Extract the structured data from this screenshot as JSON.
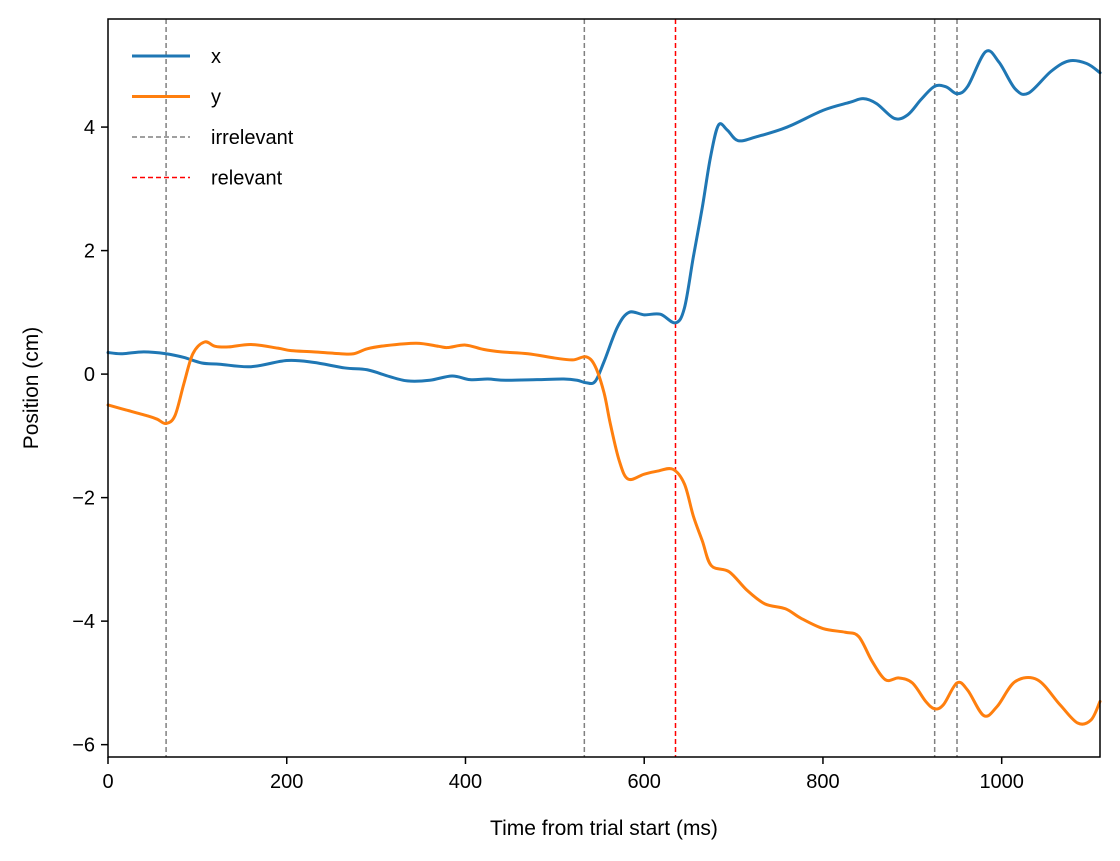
{
  "chart_data": {
    "type": "line",
    "title": "",
    "xlabel": "Time from trial start (ms)",
    "ylabel": "Position (cm)",
    "xlim": [
      0,
      1110
    ],
    "ylim": [
      -6.2,
      5.75
    ],
    "x_ticks": [
      0,
      200,
      400,
      600,
      800,
      1000
    ],
    "y_ticks": [
      -6,
      -4,
      -2,
      0,
      2,
      4
    ],
    "x_tick_labels": [
      "0",
      "200",
      "400",
      "600",
      "800",
      "1000"
    ],
    "y_tick_labels": [
      "−6",
      "−4",
      "−2",
      "0",
      "2",
      "4"
    ],
    "grid": false,
    "legend_position": "top-left",
    "series": [
      {
        "name": "x",
        "color": "#1f77b4",
        "points": [
          [
            0,
            0.35
          ],
          [
            15,
            0.33
          ],
          [
            40,
            0.36
          ],
          [
            65,
            0.33
          ],
          [
            85,
            0.27
          ],
          [
            105,
            0.18
          ],
          [
            125,
            0.16
          ],
          [
            160,
            0.12
          ],
          [
            200,
            0.22
          ],
          [
            230,
            0.19
          ],
          [
            265,
            0.1
          ],
          [
            290,
            0.07
          ],
          [
            315,
            -0.04
          ],
          [
            335,
            -0.11
          ],
          [
            360,
            -0.1
          ],
          [
            385,
            -0.03
          ],
          [
            405,
            -0.09
          ],
          [
            425,
            -0.08
          ],
          [
            445,
            -0.1
          ],
          [
            480,
            -0.09
          ],
          [
            510,
            -0.08
          ],
          [
            525,
            -0.1
          ],
          [
            535,
            -0.14
          ],
          [
            545,
            -0.12
          ],
          [
            555,
            0.2
          ],
          [
            570,
            0.76
          ],
          [
            583,
            1.0
          ],
          [
            600,
            0.96
          ],
          [
            618,
            0.97
          ],
          [
            635,
            0.83
          ],
          [
            645,
            1.07
          ],
          [
            655,
            1.9
          ],
          [
            665,
            2.7
          ],
          [
            674,
            3.5
          ],
          [
            683,
            4.03
          ],
          [
            693,
            3.95
          ],
          [
            705,
            3.78
          ],
          [
            725,
            3.84
          ],
          [
            760,
            4.0
          ],
          [
            800,
            4.27
          ],
          [
            830,
            4.4
          ],
          [
            845,
            4.46
          ],
          [
            860,
            4.38
          ],
          [
            880,
            4.14
          ],
          [
            895,
            4.2
          ],
          [
            910,
            4.45
          ],
          [
            925,
            4.66
          ],
          [
            938,
            4.65
          ],
          [
            950,
            4.54
          ],
          [
            962,
            4.66
          ],
          [
            982,
            5.22
          ],
          [
            997,
            5.05
          ],
          [
            1015,
            4.62
          ],
          [
            1030,
            4.55
          ],
          [
            1055,
            4.9
          ],
          [
            1075,
            5.07
          ],
          [
            1095,
            5.03
          ],
          [
            1110,
            4.88
          ]
        ]
      },
      {
        "name": "y",
        "color": "#ff7f0e",
        "points": [
          [
            0,
            -0.5
          ],
          [
            20,
            -0.58
          ],
          [
            45,
            -0.68
          ],
          [
            55,
            -0.73
          ],
          [
            65,
            -0.8
          ],
          [
            75,
            -0.67
          ],
          [
            85,
            -0.15
          ],
          [
            95,
            0.33
          ],
          [
            108,
            0.52
          ],
          [
            120,
            0.45
          ],
          [
            135,
            0.44
          ],
          [
            160,
            0.48
          ],
          [
            190,
            0.42
          ],
          [
            205,
            0.38
          ],
          [
            230,
            0.36
          ],
          [
            260,
            0.33
          ],
          [
            275,
            0.33
          ],
          [
            290,
            0.41
          ],
          [
            310,
            0.46
          ],
          [
            345,
            0.5
          ],
          [
            370,
            0.45
          ],
          [
            380,
            0.43
          ],
          [
            400,
            0.47
          ],
          [
            420,
            0.4
          ],
          [
            440,
            0.36
          ],
          [
            470,
            0.33
          ],
          [
            500,
            0.26
          ],
          [
            520,
            0.23
          ],
          [
            535,
            0.28
          ],
          [
            545,
            0.13
          ],
          [
            555,
            -0.3
          ],
          [
            562,
            -0.8
          ],
          [
            572,
            -1.4
          ],
          [
            582,
            -1.7
          ],
          [
            600,
            -1.62
          ],
          [
            615,
            -1.57
          ],
          [
            632,
            -1.54
          ],
          [
            645,
            -1.78
          ],
          [
            655,
            -2.3
          ],
          [
            665,
            -2.7
          ],
          [
            675,
            -3.1
          ],
          [
            695,
            -3.2
          ],
          [
            715,
            -3.5
          ],
          [
            735,
            -3.72
          ],
          [
            758,
            -3.8
          ],
          [
            775,
            -3.95
          ],
          [
            800,
            -4.12
          ],
          [
            825,
            -4.18
          ],
          [
            840,
            -4.25
          ],
          [
            855,
            -4.65
          ],
          [
            870,
            -4.95
          ],
          [
            885,
            -4.92
          ],
          [
            900,
            -5.0
          ],
          [
            915,
            -5.3
          ],
          [
            925,
            -5.42
          ],
          [
            935,
            -5.35
          ],
          [
            950,
            -5.0
          ],
          [
            962,
            -5.12
          ],
          [
            980,
            -5.53
          ],
          [
            995,
            -5.38
          ],
          [
            1015,
            -4.98
          ],
          [
            1040,
            -4.95
          ],
          [
            1065,
            -5.35
          ],
          [
            1085,
            -5.65
          ],
          [
            1100,
            -5.6
          ],
          [
            1110,
            -5.3
          ]
        ]
      }
    ],
    "vertical_lines": [
      {
        "x": 65,
        "category": "irrelevant",
        "color": "#808080"
      },
      {
        "x": 533,
        "category": "irrelevant",
        "color": "#808080"
      },
      {
        "x": 635,
        "category": "relevant",
        "color": "#ff0000"
      },
      {
        "x": 925,
        "category": "irrelevant",
        "color": "#808080"
      },
      {
        "x": 950,
        "category": "irrelevant",
        "color": "#808080"
      }
    ],
    "legend": [
      {
        "label": "x",
        "style": "solid",
        "color": "#1f77b4"
      },
      {
        "label": "y",
        "style": "solid",
        "color": "#ff7f0e"
      },
      {
        "label": "irrelevant",
        "style": "dashed",
        "color": "#808080"
      },
      {
        "label": "relevant",
        "style": "dashed",
        "color": "#ff0000"
      }
    ]
  }
}
